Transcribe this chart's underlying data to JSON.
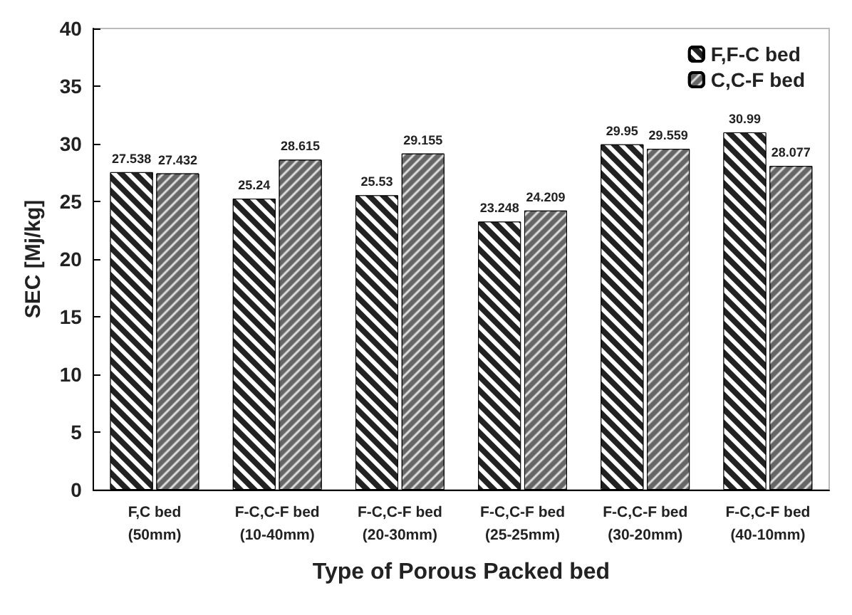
{
  "chart_data": {
    "type": "bar",
    "xlabel": "Type of Porous Packed bed",
    "ylabel": "SEC [Mj/kg]",
    "categories": [
      "F,C bed\n(50mm)",
      "F-C,C-F bed\n(10-40mm)",
      "F-C,C-F bed\n(20-30mm)",
      "F-C,C-F bed\n(25-25mm)",
      "F-C,C-F bed\n(30-20mm)",
      "F-C,C-F bed\n(40-10mm)"
    ],
    "series": [
      {
        "name": "F,F-C bed",
        "color": "#222222",
        "values": [
          27.538,
          25.24,
          25.53,
          23.248,
          29.95,
          30.99
        ]
      },
      {
        "name": "C,C-F bed",
        "color": "#666666",
        "values": [
          27.432,
          28.615,
          29.155,
          24.209,
          29.559,
          28.077
        ]
      }
    ],
    "ylim": [
      0,
      40
    ],
    "yticks": [
      0,
      5,
      10,
      15,
      20,
      25,
      30,
      35,
      40
    ],
    "data_labels": true,
    "legend": "top right",
    "grid": false
  }
}
